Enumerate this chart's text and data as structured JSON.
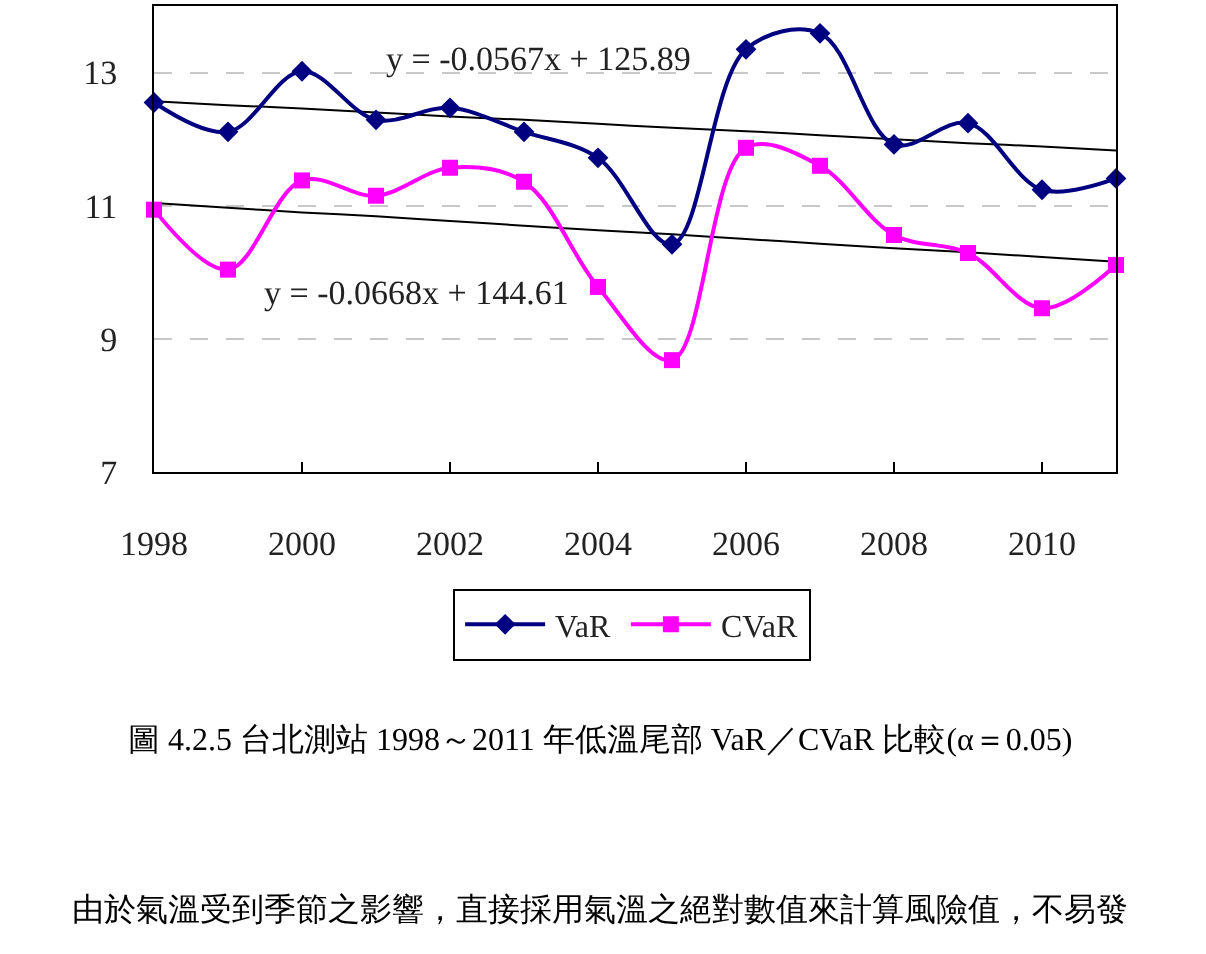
{
  "chart_data": {
    "type": "line",
    "x": [
      1998,
      1999,
      2000,
      2001,
      2002,
      2003,
      2004,
      2005,
      2006,
      2007,
      2008,
      2009,
      2010,
      2011
    ],
    "series": [
      {
        "name": "VaR",
        "color": "#000080",
        "marker": "diamond",
        "values": [
          12.55,
          12.11,
          13.02,
          12.29,
          12.47,
          12.11,
          11.72,
          10.42,
          13.35,
          13.59,
          11.92,
          12.24,
          11.24,
          11.41
        ]
      },
      {
        "name": "CVaR",
        "color": "#ff00ff",
        "marker": "square",
        "values": [
          10.94,
          10.04,
          11.38,
          11.15,
          11.57,
          11.36,
          9.78,
          8.68,
          11.87,
          11.6,
          10.56,
          10.29,
          9.46,
          10.11
        ]
      },
      {
        "type": "line",
        "color": "#000000",
        "marker": "none",
        "values": [
          12.57,
          12.51,
          12.46,
          12.4,
          12.34,
          12.29,
          12.23,
          12.17,
          12.12,
          12.06,
          12.0,
          11.94,
          11.89,
          11.83
        ]
      },
      {
        "type": "line",
        "color": "#000000",
        "marker": "none",
        "values": [
          11.04,
          10.97,
          10.9,
          10.84,
          10.77,
          10.7,
          10.63,
          10.57,
          10.5,
          10.43,
          10.36,
          10.3,
          10.23,
          10.16
        ]
      }
    ],
    "xlim": [
      1998,
      2011
    ],
    "xticks": [
      1998,
      2000,
      2002,
      2004,
      2006,
      2008,
      2010
    ],
    "ylim": [
      7,
      14
    ],
    "yticks": [
      7,
      9,
      11,
      13
    ],
    "grid": "y",
    "legend": "bottom",
    "line_style": "solid",
    "annotations": [
      "y = -0.0567x + 125.89",
      "y = -0.0668x + 144.61",
      "圖 4.2.5 台北測站 1998～2011 年低溫尾部 VaR／CVaR 比較(α＝0.05)",
      "由於氣溫受到季節之影響，直接採用氣溫之絕對數值來計算風險值，不易發"
    ]
  }
}
